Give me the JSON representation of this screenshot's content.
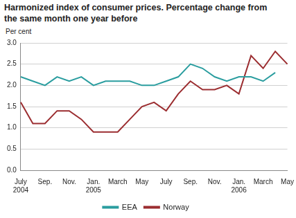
{
  "chart_data": {
    "type": "line",
    "title": "Harmonized index of consumer prices. Percentage change from the same month one year before",
    "y_label": "Per cent",
    "categories": [
      "July 2004",
      null,
      "Sep.",
      null,
      "Nov.",
      null,
      "Jan. 2005",
      null,
      "March",
      null,
      "May",
      null,
      "July",
      null,
      "Sep.",
      null,
      "Nov.",
      null,
      "Jan. 2006",
      null,
      "March",
      null,
      "May"
    ],
    "series": [
      {
        "name": "EEA",
        "color": "#2a9d9f",
        "values": [
          2.2,
          2.1,
          2.0,
          2.2,
          2.1,
          2.2,
          2.0,
          2.1,
          2.1,
          2.1,
          2.0,
          2.0,
          2.1,
          2.2,
          2.5,
          2.4,
          2.2,
          2.1,
          2.2,
          2.2,
          2.1,
          2.3,
          null
        ]
      },
      {
        "name": "Norway",
        "color": "#9b2d30",
        "values": [
          1.6,
          1.1,
          1.1,
          1.4,
          1.4,
          1.2,
          0.9,
          0.9,
          0.9,
          1.2,
          1.5,
          1.6,
          1.4,
          1.8,
          2.1,
          1.9,
          1.9,
          2.0,
          1.8,
          2.7,
          2.4,
          2.8,
          2.5
        ]
      }
    ],
    "ylim": [
      0,
      3
    ],
    "yticks": [
      {
        "value": 0,
        "label": "0.0"
      },
      0.5,
      {
        "value": 1,
        "label": "1.0"
      },
      1.5,
      {
        "value": 2,
        "label": "2.0"
      },
      2.5,
      {
        "value": 3,
        "label": "3.0"
      }
    ],
    "grid": true,
    "legend": "bottom"
  }
}
